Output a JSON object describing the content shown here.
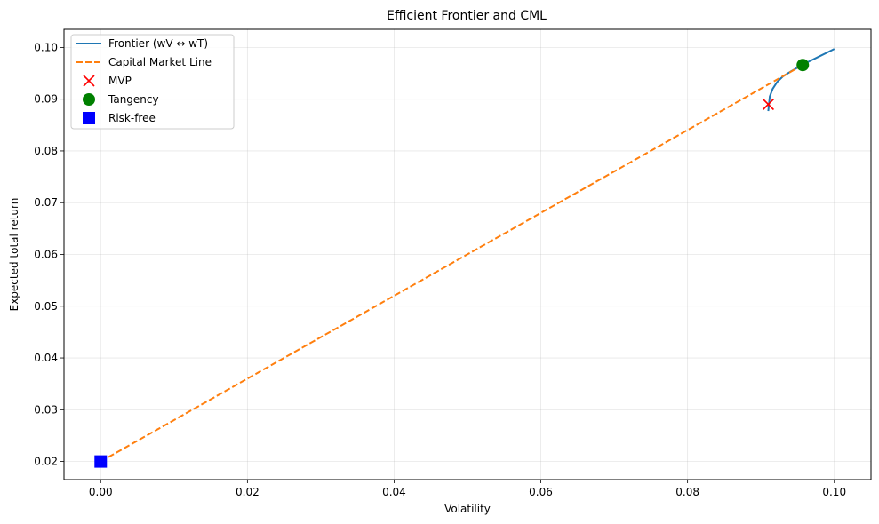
{
  "chart_data": {
    "type": "line",
    "title": "Efficient Frontier and CML",
    "xlabel": "Volatility",
    "ylabel": "Expected total return",
    "xlim": [
      -0.005,
      0.105
    ],
    "ylim": [
      0.0165,
      0.1035
    ],
    "xticks": [
      0.0,
      0.02,
      0.04,
      0.06,
      0.08,
      0.1
    ],
    "xtick_labels": [
      "0.00",
      "0.02",
      "0.04",
      "0.06",
      "0.08",
      "0.10"
    ],
    "yticks": [
      0.02,
      0.03,
      0.04,
      0.05,
      0.06,
      0.07,
      0.08,
      0.09,
      0.1
    ],
    "ytick_labels": [
      "0.02",
      "0.03",
      "0.04",
      "0.05",
      "0.06",
      "0.07",
      "0.08",
      "0.09",
      "0.10"
    ],
    "grid": true,
    "legend_position": "top-left",
    "series": [
      {
        "name": "Frontier (wV ↔ wT)",
        "kind": "line",
        "style": "solid",
        "color": "#1f77b4",
        "x": [
          0.091,
          0.0912,
          0.0916,
          0.0922,
          0.093,
          0.094,
          0.095,
          0.096,
          0.097,
          0.098,
          0.099,
          0.1
        ],
        "y": [
          0.0877,
          0.0905,
          0.092,
          0.0933,
          0.0944,
          0.0953,
          0.0961,
          0.0969,
          0.0976,
          0.0983,
          0.099,
          0.0997
        ]
      },
      {
        "name": "Capital Market Line",
        "kind": "line",
        "style": "dashed",
        "color": "#ff7f0e",
        "x": [
          0.0,
          0.0957
        ],
        "y": [
          0.02,
          0.0966
        ]
      },
      {
        "name": "MVP",
        "kind": "point",
        "marker": "x",
        "color": "#ff0000",
        "x": [
          0.091
        ],
        "y": [
          0.089
        ]
      },
      {
        "name": "Tangency",
        "kind": "point",
        "marker": "circle",
        "color": "#008000",
        "x": [
          0.0957
        ],
        "y": [
          0.0966
        ]
      },
      {
        "name": "Risk-free",
        "kind": "point",
        "marker": "square",
        "color": "#0000ff",
        "x": [
          0.0
        ],
        "y": [
          0.02
        ]
      }
    ]
  }
}
